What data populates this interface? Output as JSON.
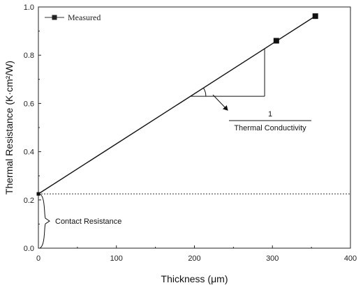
{
  "chart_data": {
    "type": "scatter",
    "title": "",
    "xlabel": "Thickness (μm)",
    "ylabel": "Thermal Resistance (K·cm²/W)",
    "xlim": [
      0,
      400
    ],
    "ylim": [
      0,
      1.0
    ],
    "x_ticks": [
      "0",
      "100",
      "200",
      "300",
      "400"
    ],
    "y_ticks": [
      "0.0",
      "0.2",
      "0.4",
      "0.6",
      "0.8",
      "1.0"
    ],
    "x_tick_values": [
      0,
      100,
      200,
      300,
      400
    ],
    "y_tick_values": [
      0,
      0.2,
      0.4,
      0.6,
      0.8,
      1.0
    ],
    "grid": false,
    "legend_position": "top-left",
    "series": [
      {
        "name": "Measured",
        "x": [
          0,
          305,
          355
        ],
        "y": [
          0.225,
          0.86,
          0.962
        ]
      }
    ],
    "fit_line": {
      "x": [
        0,
        355
      ],
      "y": [
        0.225,
        0.962
      ]
    },
    "contact_resistance_level": 0.225,
    "slope_triangle": {
      "x_start": 195,
      "x_end": 290
    },
    "annotations": {
      "slope_numerator": "1",
      "slope_denominator": "Thermal Conductivity",
      "contact": "Contact Resistance"
    },
    "colors": {
      "line": "#111111",
      "marker": "#111111"
    }
  }
}
